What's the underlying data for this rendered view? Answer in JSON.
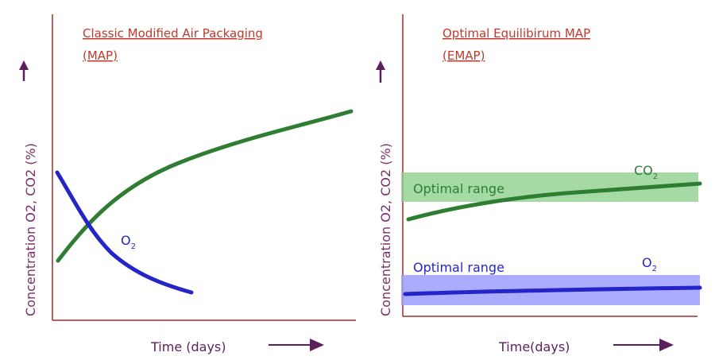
{
  "left_panel": {
    "title_line1": "Classic Modified Air Packaging",
    "title_line2": "(MAP)",
    "y_label": "Concentration O2, CO2 (%)",
    "x_label": "Time (days)",
    "o2_label": "O",
    "o2_sub": "2"
  },
  "right_panel": {
    "title_line1": "Optimal Equilibirum MAP",
    "title_line2": "(EMAP)",
    "y_label": "Concentration O2, CO2 (%)",
    "x_label": "Time(days)",
    "co2_label": "CO",
    "co2_sub": "2",
    "o2_label": "O",
    "o2_sub": "2",
    "co2_band_label": "Optimal range",
    "o2_band_label": "Optimal range"
  },
  "colors": {
    "axis": "#a52a2a",
    "title": "#c0392b",
    "green_line": "#2e7d32",
    "blue_line": "#2424c8",
    "green_band": "#8fd18f",
    "blue_band": "#9d9dff",
    "arrow": "#5b1f5c"
  }
}
